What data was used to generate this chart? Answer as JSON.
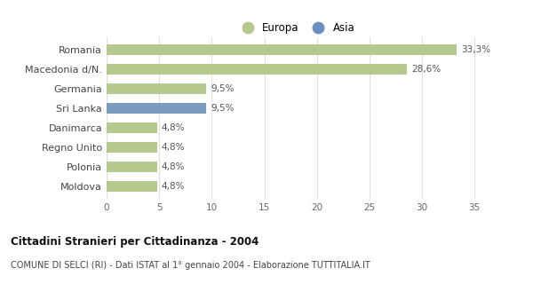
{
  "categories": [
    "Romania",
    "Macedonia d/N.",
    "Germania",
    "Sri Lanka",
    "Danimarca",
    "Regno Unito",
    "Polonia",
    "Moldova"
  ],
  "values": [
    33.3,
    28.6,
    9.5,
    9.5,
    4.8,
    4.8,
    4.8,
    4.8
  ],
  "labels": [
    "33,3%",
    "28,6%",
    "9,5%",
    "9,5%",
    "4,8%",
    "4,8%",
    "4,8%",
    "4,8%"
  ],
  "colors": [
    "#b5c98e",
    "#b5c98e",
    "#b5c98e",
    "#7b9bbf",
    "#b5c98e",
    "#b5c98e",
    "#b5c98e",
    "#b5c98e"
  ],
  "europa_color": "#b5c98e",
  "asia_color": "#6b8fbf",
  "title": "Cittadini Stranieri per Cittadinanza - 2004",
  "subtitle": "COMUNE DI SELCI (RI) - Dati ISTAT al 1° gennaio 2004 - Elaborazione TUTTITALIA.IT",
  "xlim": [
    0,
    36
  ],
  "xticks": [
    0,
    5,
    10,
    15,
    20,
    25,
    30,
    35
  ],
  "background_color": "#ffffff",
  "grid_color": "#e0e0e0"
}
